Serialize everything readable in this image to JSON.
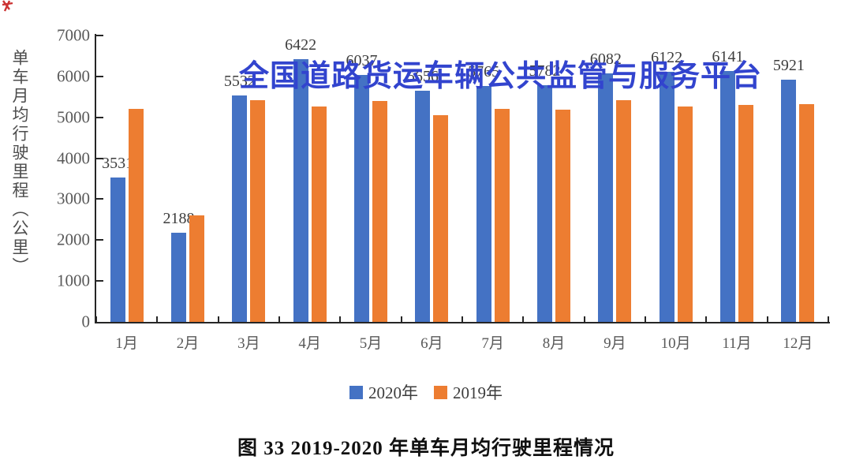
{
  "watermark": {
    "text": "全国道路货运车辆公共监管与服务平台",
    "color": "#3244ce"
  },
  "caption": "图 33  2019-2020 年单车月均行驶里程情况",
  "colors": {
    "series_2020": "#4472c4",
    "series_2019": "#ed7d31",
    "axis": "#262626",
    "tick_text": "#595959",
    "data_label_text": "#3d3d3d",
    "corner_mark": "#cc3333"
  },
  "chart_data": {
    "type": "bar",
    "title": "",
    "xlabel": "",
    "ylabel": "单车月均行驶里程（公里）",
    "ylim": [
      0,
      7000
    ],
    "yticks": [
      7000,
      6000,
      5000,
      4000,
      3000,
      2000,
      1000,
      0
    ],
    "grid": false,
    "legend_position": "bottom",
    "categories": [
      "1月",
      "2月",
      "3月",
      "4月",
      "5月",
      "6月",
      "7月",
      "8月",
      "9月",
      "10月",
      "11月",
      "12月"
    ],
    "series": [
      {
        "name": "2020年",
        "color": "#4472c4",
        "data_labels_shown": true,
        "values": [
          3531,
          2188,
          5532,
          6422,
          6037,
          5656,
          5765,
          5782,
          6082,
          6122,
          6141,
          5921
        ]
      },
      {
        "name": "2019年",
        "color": "#ed7d31",
        "data_labels_shown": false,
        "values": [
          5200,
          2600,
          5410,
          5260,
          5400,
          5050,
          5200,
          5190,
          5420,
          5270,
          5300,
          5320
        ]
      }
    ]
  }
}
